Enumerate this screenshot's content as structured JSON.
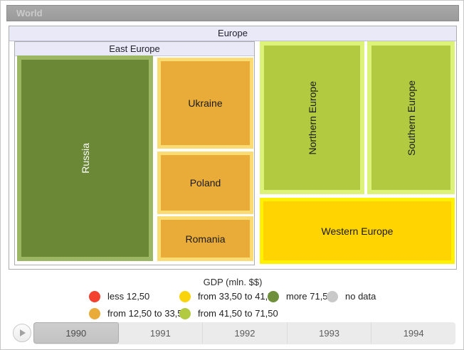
{
  "title_bar": {
    "label": "World"
  },
  "chart_data": {
    "type": "treemap",
    "title": "Europe",
    "legend_title": "GDP (mln. $$)",
    "color_bins": [
      {
        "label": "less 12,50",
        "color": "#F4402E"
      },
      {
        "label": "from 12,50 to 33,50",
        "color": "#E9AC39"
      },
      {
        "label": "from 33,50 to 41,50",
        "color": "#F9D30B"
      },
      {
        "label": "from 41,50 to 71,50",
        "color": "#B1CA40"
      },
      {
        "label": "more 71,50",
        "color": "#6F8F3C"
      },
      {
        "label": "no data",
        "color": "#C9C9C9"
      }
    ],
    "groups": [
      {
        "label": "East Europe",
        "children": [
          {
            "name": "Russia",
            "gdp_bin": "more 71,50",
            "fill": "#6A8836",
            "border": "#9CB763"
          },
          {
            "name": "Ukraine",
            "gdp_bin": "from 12,50 to 33,50",
            "fill": "#E9AC39",
            "border": "#FADC73"
          },
          {
            "name": "Poland",
            "gdp_bin": "from 12,50 to 33,50",
            "fill": "#E9AC39",
            "border": "#FADC73"
          },
          {
            "name": "Romania",
            "gdp_bin": "from 12,50 to 33,50",
            "fill": "#E9AC39",
            "border": "#FADC73"
          }
        ]
      }
    ],
    "tiles": [
      {
        "name": "Northern Europe",
        "gdp_bin": "from 41,50 to 71,50",
        "fill": "#B1CA40",
        "border": "#DDF279"
      },
      {
        "name": "Southern Europe",
        "gdp_bin": "from 41,50 to 71,50",
        "fill": "#B1CA40",
        "border": "#DDF279"
      },
      {
        "name": "Western Europe",
        "gdp_bin": "from 33,50 to 41,50",
        "fill": "#FFD400",
        "border": "#FFF101"
      }
    ]
  },
  "timeline": {
    "years": [
      "1990",
      "1991",
      "1992",
      "1993",
      "1994"
    ],
    "selected_year": "1990"
  }
}
